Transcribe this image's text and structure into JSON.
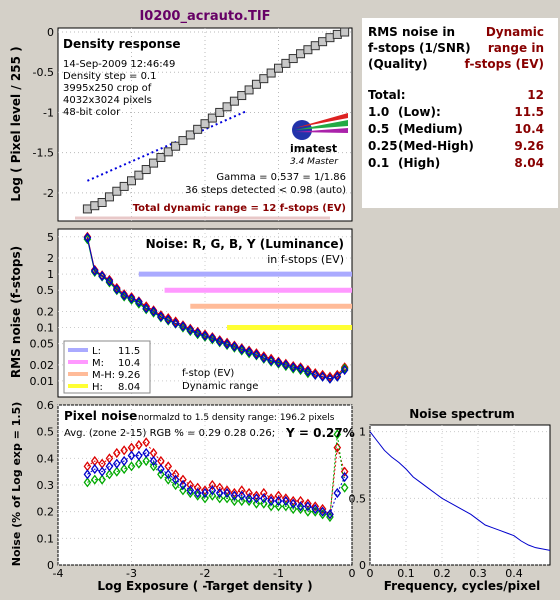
{
  "title": "I0200_acrauto.TIF",
  "density": {
    "box_title": "Density response",
    "info": [
      "14-Sep-2009 12:46:49",
      "Density step = 0.1",
      "3995x250 crop of",
      "4032x3024 pixels",
      "48-bit color"
    ],
    "logo_text": "imatest",
    "logo_sub": "3.4  Master",
    "gamma": "Gamma = 0.537 = 1/1.86",
    "steps": "36 steps detected < 0.98 (auto)",
    "total_range": "Total dynamic range = 12 f-stops (EV)",
    "ylabel": "Log ( Pixel level / 255 )",
    "yticks": [
      "0",
      "-0.5",
      "-1",
      "-1.5",
      "-2"
    ]
  },
  "table": {
    "col1": [
      "RMS noise in",
      "f-stops (1/SNR)",
      "(Quality)"
    ],
    "col2": [
      "Dynamic",
      "range in",
      "f-stops (EV)"
    ],
    "rows": [
      {
        "q": "Total:",
        "label": "",
        "v": "12"
      },
      {
        "q": "1.0",
        "label": "(Low):",
        "v": "11.5"
      },
      {
        "q": "0.5",
        "label": "(Medium)",
        "v": "10.4"
      },
      {
        "q": "0.25",
        "label": "(Med-High)",
        "v": "9.26"
      },
      {
        "q": "0.1",
        "label": "(High)",
        "v": "8.04"
      }
    ]
  },
  "noise": {
    "title": "Noise: R, G, B, Y (Luminance)",
    "subtitle": "in f-stops (EV)",
    "ylabel": "RMS noise (f-stops)",
    "yticks": [
      "5",
      "2",
      "1",
      "0.5",
      "0.2",
      "0.1",
      "0.05",
      "0.02",
      "0.01"
    ],
    "legend": [
      {
        "k": "L:",
        "v": "11.5",
        "color": "#aaaaff"
      },
      {
        "k": "M:",
        "v": "10.4",
        "color": "#ff99ff"
      },
      {
        "k": "M-H:",
        "v": "9.26",
        "color": "#ffbb99"
      },
      {
        "k": "H:",
        "v": "8.04",
        "color": "#ffff33"
      }
    ],
    "legend_note1": "f-stop (EV)",
    "legend_note2": "Dynamic range"
  },
  "pixel": {
    "title": "Pixel noise",
    "norm": "normalzd to 1.5 density range: 196.2 pixels",
    "avg": "Avg. (zone 2-15) RGB % = 0.29  0.28  0.26;",
    "y": "Y = 0.27%",
    "ylabel": "Noise (% of Log exp = 1.5)",
    "yticks": [
      "0.6",
      "0.5",
      "0.4",
      "0.3",
      "0.2",
      "0.1",
      "0"
    ],
    "xlabel": "Log Exposure ( -Target density )",
    "xticks": [
      "-4",
      "-3",
      "-2",
      "-1",
      "0"
    ]
  },
  "spectrum": {
    "title": "Noise spectrum",
    "xlabel": "Frequency, cycles/pixel",
    "xticks": [
      "0",
      "0.1",
      "0.2",
      "0.3",
      "0.4"
    ],
    "yticks": [
      "1",
      "0.5",
      "0"
    ]
  },
  "chart_data": [
    {
      "type": "scatter",
      "name": "density_response",
      "x": [
        -3.6,
        -3.5,
        -3.4,
        -3.3,
        -3.2,
        -3.1,
        -3.0,
        -2.9,
        -2.8,
        -2.7,
        -2.6,
        -2.5,
        -2.4,
        -2.3,
        -2.2,
        -2.1,
        -2.0,
        -1.9,
        -1.8,
        -1.7,
        -1.6,
        -1.5,
        -1.4,
        -1.3,
        -1.2,
        -1.1,
        -1.0,
        -0.9,
        -0.8,
        -0.7,
        -0.6,
        -0.5,
        -0.4,
        -0.3,
        -0.2,
        -0.1
      ],
      "y": [
        -2.2,
        -2.16,
        -2.12,
        -2.05,
        -1.98,
        -1.92,
        -1.85,
        -1.78,
        -1.71,
        -1.63,
        -1.56,
        -1.49,
        -1.42,
        -1.35,
        -1.28,
        -1.21,
        -1.14,
        -1.07,
        -1.0,
        -0.93,
        -0.86,
        -0.79,
        -0.72,
        -0.65,
        -0.58,
        -0.51,
        -0.45,
        -0.39,
        -0.33,
        -0.27,
        -0.22,
        -0.17,
        -0.12,
        -0.07,
        -0.03,
        0.0
      ],
      "fit_line": {
        "x": [
          -3.6,
          -1.45
        ],
        "y": [
          -1.85,
          -0.99
        ]
      },
      "ylim": [
        -2.35,
        0.05
      ],
      "xlim": [
        -4,
        0
      ]
    },
    {
      "type": "line",
      "name": "rms_noise_fstops",
      "x": [
        -3.6,
        -3.5,
        -3.4,
        -3.3,
        -3.2,
        -3.1,
        -3.0,
        -2.9,
        -2.8,
        -2.7,
        -2.6,
        -2.5,
        -2.4,
        -2.3,
        -2.2,
        -2.1,
        -2.0,
        -1.9,
        -1.8,
        -1.7,
        -1.6,
        -1.5,
        -1.4,
        -1.3,
        -1.2,
        -1.1,
        -1.0,
        -0.9,
        -0.8,
        -0.7,
        -0.6,
        -0.5,
        -0.4,
        -0.3,
        -0.2,
        -0.1
      ],
      "series": [
        {
          "name": "R",
          "color": "#dd0000",
          "values": [
            5,
            1.2,
            0.95,
            0.78,
            0.55,
            0.42,
            0.37,
            0.31,
            0.25,
            0.21,
            0.17,
            0.15,
            0.13,
            0.11,
            0.095,
            0.083,
            0.074,
            0.066,
            0.058,
            0.052,
            0.046,
            0.041,
            0.037,
            0.033,
            0.029,
            0.026,
            0.023,
            0.021,
            0.019,
            0.018,
            0.016,
            0.014,
            0.013,
            0.012,
            0.013,
            0.018
          ]
        },
        {
          "name": "G",
          "color": "#00aa00",
          "values": [
            4.5,
            1.1,
            0.9,
            0.7,
            0.5,
            0.38,
            0.33,
            0.28,
            0.22,
            0.19,
            0.155,
            0.135,
            0.118,
            0.1,
            0.086,
            0.075,
            0.067,
            0.06,
            0.053,
            0.047,
            0.042,
            0.037,
            0.033,
            0.03,
            0.026,
            0.023,
            0.021,
            0.019,
            0.017,
            0.016,
            0.014,
            0.013,
            0.012,
            0.011,
            0.012,
            0.017
          ]
        },
        {
          "name": "B",
          "color": "#0000cc",
          "values": [
            4.8,
            1.15,
            0.92,
            0.74,
            0.52,
            0.4,
            0.35,
            0.3,
            0.23,
            0.2,
            0.16,
            0.14,
            0.12,
            0.105,
            0.09,
            0.079,
            0.07,
            0.063,
            0.055,
            0.049,
            0.044,
            0.039,
            0.035,
            0.031,
            0.027,
            0.024,
            0.022,
            0.02,
            0.018,
            0.017,
            0.015,
            0.013,
            0.012,
            0.011,
            0.012,
            0.016
          ]
        }
      ],
      "thresholds": [
        {
          "name": "L",
          "value": 1.0,
          "color": "#aaaaff"
        },
        {
          "name": "M",
          "value": 0.5,
          "color": "#ff99ff"
        },
        {
          "name": "M-H",
          "value": 0.25,
          "color": "#ffbb99"
        },
        {
          "name": "H",
          "value": 0.1,
          "color": "#ffff33"
        }
      ],
      "ylim": [
        0.005,
        7
      ],
      "xlim": [
        -4,
        0
      ],
      "scale": "log"
    },
    {
      "type": "line",
      "name": "pixel_noise",
      "x": [
        -3.6,
        -3.5,
        -3.4,
        -3.3,
        -3.2,
        -3.1,
        -3.0,
        -2.9,
        -2.8,
        -2.7,
        -2.6,
        -2.5,
        -2.4,
        -2.3,
        -2.2,
        -2.1,
        -2.0,
        -1.9,
        -1.8,
        -1.7,
        -1.6,
        -1.5,
        -1.4,
        -1.3,
        -1.2,
        -1.1,
        -1.0,
        -0.9,
        -0.8,
        -0.7,
        -0.6,
        -0.5,
        -0.4,
        -0.3,
        -0.2,
        -0.1
      ],
      "series": [
        {
          "name": "R",
          "color": "#dd0000",
          "values": [
            0.37,
            0.39,
            0.38,
            0.4,
            0.42,
            0.43,
            0.44,
            0.45,
            0.46,
            0.42,
            0.39,
            0.37,
            0.34,
            0.32,
            0.3,
            0.29,
            0.28,
            0.3,
            0.29,
            0.28,
            0.27,
            0.28,
            0.27,
            0.26,
            0.27,
            0.25,
            0.26,
            0.25,
            0.24,
            0.24,
            0.23,
            0.22,
            0.21,
            0.19,
            0.44,
            0.35
          ]
        },
        {
          "name": "G",
          "color": "#00aa00",
          "values": [
            0.31,
            0.32,
            0.32,
            0.34,
            0.35,
            0.36,
            0.37,
            0.38,
            0.39,
            0.37,
            0.34,
            0.32,
            0.3,
            0.28,
            0.27,
            0.26,
            0.25,
            0.26,
            0.25,
            0.25,
            0.24,
            0.24,
            0.24,
            0.23,
            0.23,
            0.22,
            0.22,
            0.22,
            0.21,
            0.21,
            0.2,
            0.2,
            0.19,
            0.18,
            0.49,
            0.29
          ]
        },
        {
          "name": "B",
          "color": "#0000cc",
          "values": [
            0.34,
            0.36,
            0.35,
            0.37,
            0.38,
            0.39,
            0.41,
            0.41,
            0.42,
            0.39,
            0.36,
            0.34,
            0.32,
            0.3,
            0.28,
            0.27,
            0.27,
            0.28,
            0.27,
            0.27,
            0.26,
            0.26,
            0.25,
            0.25,
            0.25,
            0.24,
            0.24,
            0.24,
            0.23,
            0.22,
            0.22,
            0.21,
            0.2,
            0.19,
            0.27,
            0.33
          ]
        }
      ],
      "ylim": [
        0,
        0.6
      ],
      "xlim": [
        -4,
        0
      ]
    },
    {
      "type": "line",
      "name": "noise_spectrum",
      "x": [
        0,
        0.02,
        0.04,
        0.06,
        0.08,
        0.1,
        0.12,
        0.14,
        0.16,
        0.18,
        0.2,
        0.22,
        0.24,
        0.26,
        0.28,
        0.3,
        0.32,
        0.34,
        0.36,
        0.38,
        0.4,
        0.42,
        0.44,
        0.46,
        0.48,
        0.5
      ],
      "values": [
        1.0,
        0.93,
        0.86,
        0.81,
        0.77,
        0.72,
        0.66,
        0.62,
        0.58,
        0.54,
        0.5,
        0.47,
        0.44,
        0.41,
        0.38,
        0.34,
        0.3,
        0.28,
        0.26,
        0.24,
        0.22,
        0.18,
        0.15,
        0.13,
        0.12,
        0.11
      ],
      "ylim": [
        0,
        1.05
      ],
      "xlim": [
        0,
        0.5
      ]
    }
  ]
}
